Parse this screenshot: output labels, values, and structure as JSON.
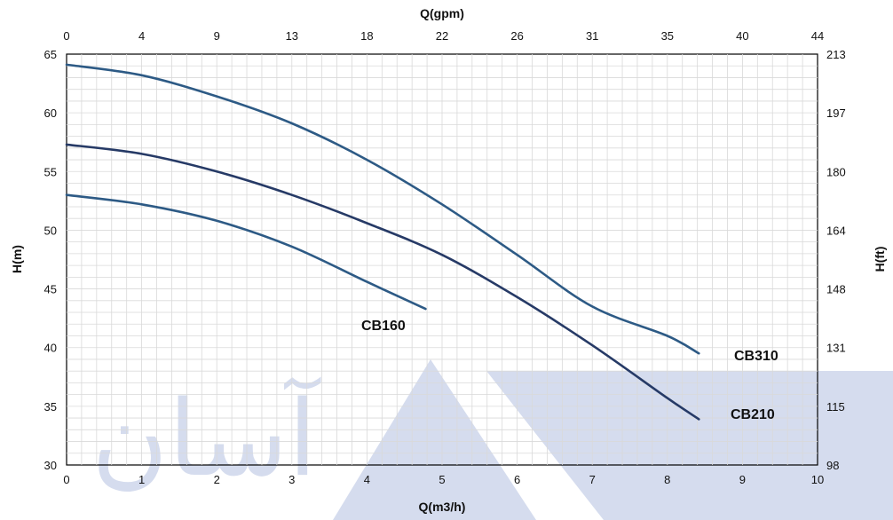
{
  "chart_data": {
    "type": "line",
    "xlabel": "Q(m3/h)",
    "ylabel": "H(m)",
    "x2label": "Q(gpm)",
    "y2label": "H(ft)",
    "xlim": [
      0,
      10
    ],
    "ylim": [
      30,
      65
    ],
    "x_ticks": [
      "0",
      "1",
      "2",
      "3",
      "4",
      "5",
      "6",
      "7",
      "8",
      "9",
      "10"
    ],
    "y_ticks": [
      "30",
      "35",
      "40",
      "45",
      "50",
      "55",
      "60",
      "65"
    ],
    "x2_ticks": [
      "0",
      "4",
      "9",
      "13",
      "18",
      "22",
      "26",
      "31",
      "35",
      "40",
      "44"
    ],
    "y2_ticks": [
      "98",
      "115",
      "131",
      "148",
      "164",
      "180",
      "197",
      "213"
    ],
    "grid": true,
    "colors": {
      "line": "#2d5a85",
      "line_dark": "#263a66",
      "grid": "#d9d9d9",
      "watermark": "#d5dcee"
    },
    "series": [
      {
        "name": "CB310",
        "x": [
          0,
          1,
          2,
          3,
          4,
          5,
          6,
          7,
          8,
          8.42
        ],
        "y": [
          64.1,
          63.2,
          61.4,
          59.1,
          56.0,
          52.2,
          47.9,
          43.5,
          41.0,
          39.5
        ]
      },
      {
        "name": "CB210",
        "x": [
          0,
          1,
          2,
          3,
          4,
          5,
          6,
          7,
          8,
          8.42
        ],
        "y": [
          57.3,
          56.5,
          55.0,
          53.0,
          50.6,
          47.9,
          44.3,
          40.2,
          35.7,
          33.9
        ]
      },
      {
        "name": "CB160",
        "x": [
          0,
          1,
          2,
          3,
          4,
          4.78
        ],
        "y": [
          53.0,
          52.2,
          50.8,
          48.6,
          45.6,
          43.3
        ]
      }
    ]
  },
  "watermark": {
    "text": "آسان",
    "icon": "triangle-logo"
  }
}
